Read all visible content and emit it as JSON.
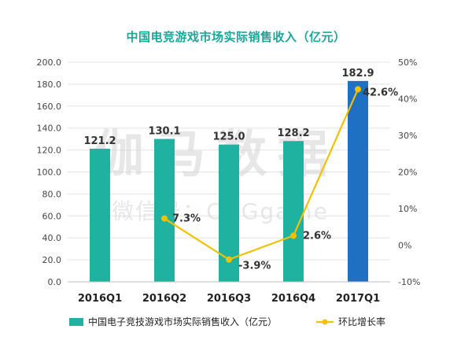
{
  "chart_data": {
    "type": "bar",
    "title": "中国电竞游戏市场实际销售收入（亿元）",
    "categories": [
      "2016Q1",
      "2016Q2",
      "2016Q3",
      "2016Q4",
      "2017Q1"
    ],
    "series": [
      {
        "name": "中国电子竞技游戏市场实际销售收入（亿元）",
        "type": "bar",
        "axis": "left",
        "values": [
          121.2,
          130.1,
          125.0,
          128.2,
          182.9
        ],
        "labels": [
          "121.2",
          "130.1",
          "125.0",
          "128.2",
          "182.9"
        ],
        "colors": [
          "#20b2a0",
          "#20b2a0",
          "#20b2a0",
          "#20b2a0",
          "#1f6fc2"
        ]
      },
      {
        "name": "环比增长率",
        "type": "line",
        "axis": "right",
        "values": [
          null,
          7.3,
          -3.9,
          2.6,
          42.6
        ],
        "labels": [
          "",
          "7.3%",
          "-3.9%",
          "2.6%",
          "42.6%"
        ],
        "color": "#f2c100"
      }
    ],
    "ylim": [
      0,
      200
    ],
    "yticks": [
      "0.0",
      "20.0",
      "40.0",
      "60.0",
      "80.0",
      "100.0",
      "120.0",
      "140.0",
      "160.0",
      "180.0",
      "200.0"
    ],
    "y2lim": [
      -10,
      50
    ],
    "y2ticks": [
      "-10%",
      "0%",
      "10%",
      "20%",
      "30%",
      "40%",
      "50%"
    ],
    "grid": true,
    "legend": "bottom"
  },
  "watermark": {
    "line1": "伽马数据",
    "line2": "微信号：CNGgame"
  }
}
